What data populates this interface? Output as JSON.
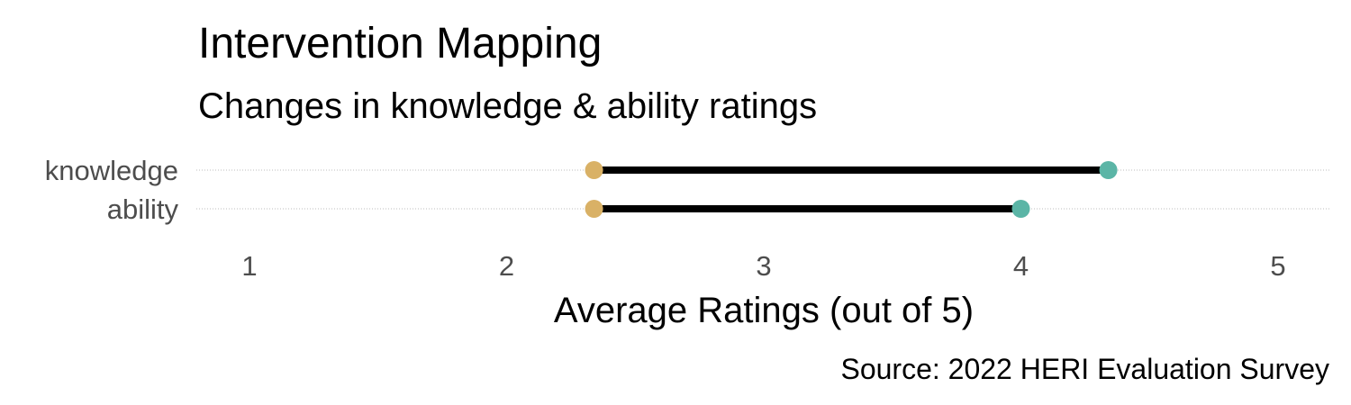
{
  "chart_data": {
    "type": "dumbbell",
    "title": "Intervention Mapping",
    "subtitle": "Changes in knowledge & ability ratings",
    "xlabel": "Average Ratings (out of 5)",
    "ylabel": "",
    "caption": "Source: 2022 HERI Evaluation Survey",
    "xlim": [
      1,
      5
    ],
    "xticks": [
      "1",
      "2",
      "3",
      "4",
      "5"
    ],
    "grid": "horizontal dotted guide per category",
    "categories": [
      "knowledge",
      "ability"
    ],
    "series": [
      {
        "values": [
          2.34,
          2.34
        ],
        "color": "#d9b166"
      },
      {
        "values": [
          4.34,
          4.0
        ],
        "color": "#5bb5a6"
      }
    ],
    "segment_color": "#000000"
  }
}
